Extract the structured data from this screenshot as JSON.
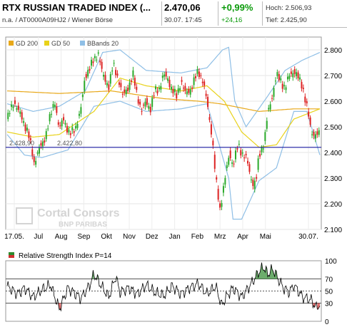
{
  "header": {
    "title": "RTX RUSSIAN TRADED INDEX (...",
    "subtitle": "n.a. / AT0000A09HJ2 / Wiener Börse",
    "price": "2.470,06",
    "datetime": "30.07. 17:45",
    "change_pct": "+0,99%",
    "change_abs": "+24,16",
    "high": "Hoch: 2.506,93",
    "low": "Tief: 2.425,90"
  },
  "colors": {
    "up": "#2aaa2a",
    "down": "#dd2222",
    "gd200": "#e8a81a",
    "gd50": "#e8d21a",
    "bbands": "#8fbfe6",
    "level_line": "#1a1aa0",
    "rsi_line": "#000000",
    "rsi_over": "#2d8a2d",
    "rsi_under": "#d03030"
  },
  "watermark": {
    "name": "Cortal Consors",
    "sub": "BNP PARIBAS"
  },
  "chart_data": [
    {
      "type": "candlestick",
      "legend": [
        "GD 200",
        "GD 50",
        "BBands 20"
      ],
      "legend_position": "top-left",
      "x_tick_labels": [
        "17.05.",
        "Jul",
        "Aug",
        "Sep",
        "Okt",
        "Nov",
        "Dez",
        "Jan",
        "Feb",
        "Mrz",
        "Apr",
        "Mai",
        "30.07."
      ],
      "y_tick_labels": [
        "2.800",
        "2.700",
        "2.600",
        "2.500",
        "2.400",
        "2.300",
        "2.200",
        "2.100"
      ],
      "ylim": [
        2100,
        2850
      ],
      "grid": true,
      "level_line": {
        "value": 2420
      },
      "inline_labels": [
        "2.428,90",
        "2.422,80"
      ],
      "x_keys": [
        0,
        8,
        16,
        24,
        31,
        35,
        42,
        48,
        55,
        60,
        65,
        72,
        78,
        85,
        90,
        95,
        100,
        105,
        110,
        117,
        122,
        128,
        133,
        140,
        145,
        150,
        155,
        160,
        165,
        170,
        175,
        180,
        185,
        190,
        195,
        200,
        205,
        212,
        220,
        225,
        230,
        236,
        240,
        245,
        250,
        256,
        260,
        266,
        270,
        276,
        280,
        284,
        287,
        290,
        296,
        300,
        305,
        310,
        315,
        320,
        325,
        330,
        335,
        340,
        346,
        350,
        355,
        360
      ],
      "close_keys": [
        2530,
        2600,
        2540,
        2480,
        2360,
        2400,
        2440,
        2520,
        2600,
        2490,
        2530,
        2470,
        2490,
        2570,
        2700,
        2730,
        2760,
        2790,
        2700,
        2660,
        2740,
        2690,
        2620,
        2660,
        2700,
        2620,
        2560,
        2600,
        2570,
        2640,
        2650,
        2700,
        2690,
        2640,
        2620,
        2680,
        2630,
        2650,
        2720,
        2680,
        2600,
        2460,
        2300,
        2180,
        2280,
        2400,
        2350,
        2430,
        2400,
        2370,
        2310,
        2270,
        2300,
        2390,
        2440,
        2550,
        2620,
        2700,
        2680,
        2650,
        2700,
        2720,
        2690,
        2660,
        2560,
        2480,
        2470,
        2470
      ],
      "gd200_keys": [
        [
          0,
          2640
        ],
        [
          60,
          2630
        ],
        [
          120,
          2640
        ],
        [
          180,
          2610
        ],
        [
          220,
          2600
        ],
        [
          245,
          2590
        ],
        [
          290,
          2560
        ],
        [
          330,
          2570
        ],
        [
          360,
          2570
        ]
      ],
      "gd50_keys": [
        [
          0,
          2480
        ],
        [
          30,
          2460
        ],
        [
          60,
          2470
        ],
        [
          100,
          2560
        ],
        [
          130,
          2690
        ],
        [
          160,
          2660
        ],
        [
          200,
          2640
        ],
        [
          230,
          2660
        ],
        [
          250,
          2600
        ],
        [
          270,
          2480
        ],
        [
          290,
          2420
        ],
        [
          310,
          2430
        ],
        [
          330,
          2530
        ],
        [
          360,
          2570
        ]
      ],
      "bb_upper_keys": [
        [
          0,
          2590
        ],
        [
          30,
          2560
        ],
        [
          60,
          2580
        ],
        [
          90,
          2640
        ],
        [
          110,
          2790
        ],
        [
          130,
          2800
        ],
        [
          160,
          2720
        ],
        [
          200,
          2710
        ],
        [
          230,
          2730
        ],
        [
          248,
          2800
        ],
        [
          255,
          2810
        ],
        [
          262,
          2600
        ],
        [
          275,
          2500
        ],
        [
          300,
          2620
        ],
        [
          320,
          2720
        ],
        [
          340,
          2760
        ],
        [
          360,
          2790
        ]
      ],
      "bb_lower_keys": [
        [
          0,
          2470
        ],
        [
          20,
          2390
        ],
        [
          40,
          2380
        ],
        [
          70,
          2410
        ],
        [
          100,
          2580
        ],
        [
          130,
          2600
        ],
        [
          160,
          2560
        ],
        [
          200,
          2570
        ],
        [
          230,
          2590
        ],
        [
          245,
          2420
        ],
        [
          255,
          2300
        ],
        [
          260,
          2140
        ],
        [
          270,
          2140
        ],
        [
          290,
          2290
        ],
        [
          310,
          2340
        ],
        [
          330,
          2560
        ],
        [
          345,
          2560
        ],
        [
          360,
          2390
        ]
      ]
    },
    {
      "type": "line",
      "title": "Relative Strength Index P=14",
      "y_tick_labels": [
        "100",
        "70",
        "50",
        "30",
        "0"
      ],
      "ylim": [
        0,
        100
      ],
      "reference_lines": [
        70,
        50,
        30
      ],
      "x_keys": [
        0,
        12,
        20,
        30,
        40,
        50,
        60,
        70,
        85,
        95,
        100,
        110,
        117,
        125,
        130,
        140,
        150,
        160,
        170,
        180,
        190,
        200,
        210,
        220,
        230,
        240,
        247,
        252,
        260,
        270,
        280,
        290,
        295,
        300,
        306,
        312,
        318,
        325,
        330,
        340,
        350,
        356,
        360
      ],
      "values": [
        58,
        45,
        55,
        40,
        52,
        60,
        20,
        55,
        38,
        60,
        78,
        55,
        40,
        74,
        48,
        55,
        45,
        60,
        48,
        42,
        58,
        45,
        55,
        62,
        45,
        58,
        26,
        40,
        55,
        40,
        60,
        82,
        90,
        78,
        86,
        70,
        55,
        48,
        60,
        40,
        35,
        22,
        28
      ]
    }
  ]
}
